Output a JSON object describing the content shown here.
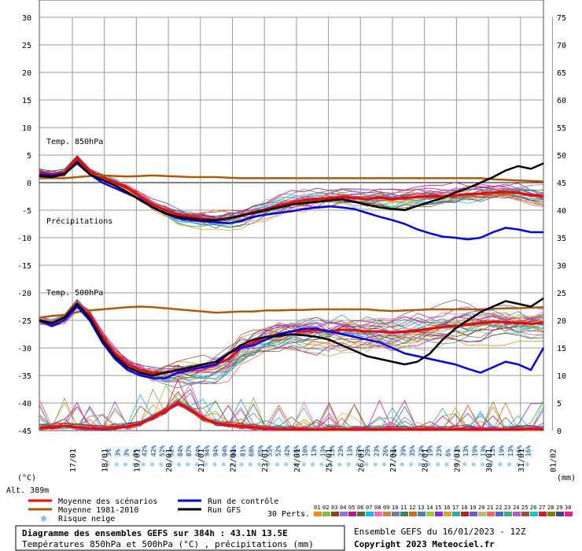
{
  "chart_data": {
    "type": "line",
    "title": "Diagramme des ensembles GEFS sur 384h : 43.1N 13.5E",
    "subtitle": "Températures 850hPa et 500hPa (°C) , précipitations (mm)",
    "left_axis_unit": "(°C)",
    "right_axis_unit": "(mm)",
    "altitude": "Alt. 389m",
    "ylim_temp": [
      -45,
      30
    ],
    "ylim_precip": [
      0,
      75
    ],
    "left_ticks": [
      "30",
      "25",
      "20",
      "15",
      "10",
      "5",
      "0",
      "-5",
      "-10",
      "-15",
      "-20",
      "-25",
      "-30",
      "-35",
      "-40",
      "-45"
    ],
    "right_ticks": [
      "75",
      "70",
      "65",
      "60",
      "55",
      "50",
      "45",
      "40",
      "35",
      "30",
      "25",
      "20",
      "15",
      "10",
      "5",
      "0"
    ],
    "dates": [
      "17/01",
      "18/01",
      "19/01",
      "20/01",
      "21/01",
      "22/01",
      "23/01",
      "24/01",
      "25/01",
      "26/01",
      "27/01",
      "28/01",
      "29/01",
      "30/01",
      "31/01",
      "01/02"
    ],
    "annotations": {
      "t850": "Temp. 850hPa",
      "precip": "Précipitations",
      "t500": "Temp. 500hPa"
    },
    "snow_risk_percent": [
      "3%",
      "3%",
      "3%",
      "3%",
      "42%",
      "42%",
      "52%",
      "52%",
      "84%",
      "87%",
      "94%",
      "94%",
      "94%",
      "94%",
      "90%",
      "81%",
      "68%",
      "65%",
      "55%",
      "52%",
      "42%",
      "16%",
      "10%",
      "13%",
      "13%",
      "13%",
      "23%",
      "13%",
      "23%",
      "29%",
      "23%",
      "26%",
      "26%",
      "39%",
      "35%",
      "23%",
      "19%",
      "23%",
      "6%",
      "13%",
      "13%",
      "19%",
      "13%",
      "13%",
      "19%",
      "13%",
      "16%",
      "16%"
    ],
    "series": [
      {
        "name": "Moyenne des scénarios",
        "color": "#ff0000",
        "t850": [
          2,
          1.5,
          1.8,
          4.5,
          2,
          1,
          0,
          -1,
          -2.5,
          -4,
          -5,
          -5.8,
          -6.2,
          -6.5,
          -6.8,
          -6.5,
          -6,
          -5.4,
          -4.8,
          -4.2,
          -3.6,
          -3.2,
          -3,
          -2.8,
          -2.6,
          -2.8,
          -3,
          -2.7,
          -3,
          -2.8,
          -2.6,
          -2.5,
          -2.5,
          -2.3,
          -2.1,
          -2,
          -1.8,
          -1.7,
          -1.9,
          -2.3,
          -2.5
        ],
        "t500": [
          -25,
          -25.5,
          -24.5,
          -22,
          -24,
          -28,
          -31,
          -33,
          -34,
          -34.5,
          -34.5,
          -34,
          -33.8,
          -33.5,
          -33,
          -32,
          -30,
          -29,
          -28,
          -27.5,
          -27,
          -27,
          -26.8,
          -27,
          -26.7,
          -26.8,
          -27,
          -27,
          -27.2,
          -27,
          -26.8,
          -26.5,
          -26.2,
          -26,
          -25.8,
          -25.5,
          -25.3,
          -25.3,
          -25.5,
          -25.6,
          -25.4
        ],
        "precip": [
          0.5,
          0.6,
          0.8,
          0.6,
          0.4,
          0.3,
          0.5,
          0.7,
          1.2,
          2.3,
          3.5,
          5.0,
          3.8,
          2.2,
          1.4,
          1.0,
          0.8,
          0.6,
          0.4,
          0.3,
          0.2,
          0.2,
          0.2,
          0.2,
          0.2,
          0.2,
          0.2,
          0.2,
          0.2,
          0.2,
          0.2,
          0.2,
          0.2,
          0.2,
          0.2,
          0.2,
          0.2,
          0.2,
          0.2,
          0.3,
          0.2
        ]
      },
      {
        "name": "Moyenne 1981-2010",
        "color": "#b35a00",
        "t850": [
          0.8,
          0.8,
          0.8,
          1.0,
          1.2,
          1.3,
          1.2,
          1.1,
          1.2,
          1.3,
          1.2,
          1.1,
          1.0,
          1.0,
          1.0,
          0.9,
          0.8,
          0.8,
          0.8,
          0.8,
          0.8,
          0.8,
          0.8,
          0.8,
          0.8,
          0.8,
          0.8,
          0.8,
          0.8,
          0.8,
          0.8,
          0.8,
          0.8,
          0.8,
          0.8,
          0.8,
          0.6,
          0.5,
          0.4,
          0.3,
          0.2
        ],
        "t500": [
          -24.5,
          -24.2,
          -24,
          -23.5,
          -23.2,
          -23,
          -22.8,
          -22.6,
          -22.5,
          -22.6,
          -22.8,
          -23,
          -23.2,
          -23.4,
          -23.6,
          -23.5,
          -23.4,
          -23.4,
          -23.2,
          -23.2,
          -23.1,
          -23.1,
          -23,
          -23,
          -23,
          -23,
          -23,
          -23.2,
          -23.3,
          -23.2,
          -23.1,
          -23,
          -23,
          -23,
          -23,
          -23,
          -22.9,
          -22.8,
          -22.8,
          -22.7,
          -22.6
        ]
      },
      {
        "name": "Run de contrôle",
        "color": "#0000ff",
        "t850": [
          1.5,
          1.3,
          1.6,
          3.5,
          1.5,
          0,
          -1,
          -2,
          -3,
          -4.5,
          -5.5,
          -6.5,
          -6.8,
          -7,
          -7.2,
          -7.4,
          -7,
          -6.2,
          -5.8,
          -5.5,
          -5.2,
          -4.8,
          -4.5,
          -4.3,
          -4.5,
          -4.8,
          -5.5,
          -6.2,
          -6.8,
          -7.5,
          -8.5,
          -9.2,
          -9.8,
          -10,
          -10.3,
          -10,
          -9,
          -8.2,
          -8.5,
          -9,
          -9
        ],
        "t500": [
          -25,
          -26,
          -25,
          -22.5,
          -25,
          -29,
          -32,
          -34,
          -35,
          -35.5,
          -35.5,
          -34.5,
          -34,
          -33.5,
          -33,
          -31,
          -30,
          -29.5,
          -28.5,
          -27.5,
          -27,
          -26.5,
          -26.5,
          -27,
          -27.5,
          -28,
          -28.5,
          -29,
          -30,
          -31,
          -31.5,
          -32,
          -32.5,
          -33,
          -33.8,
          -34.5,
          -33.5,
          -32.5,
          -33,
          -34,
          -30
        ]
      },
      {
        "name": "Run GFS",
        "color": "#000000",
        "t850": [
          1.2,
          1.0,
          1.5,
          3.8,
          1.5,
          0.5,
          -0.5,
          -1.8,
          -3.2,
          -4.5,
          -5.6,
          -6.2,
          -6.5,
          -6.8,
          -6.8,
          -6.5,
          -6,
          -5.5,
          -5,
          -4.5,
          -4,
          -3.7,
          -3.5,
          -3.2,
          -3,
          -3.5,
          -4,
          -4.5,
          -4.8,
          -5,
          -4.2,
          -3.5,
          -2.8,
          -1.8,
          -1,
          0,
          1,
          2.2,
          3.0,
          2.5,
          3.5
        ],
        "t500": [
          -25,
          -25.5,
          -24.5,
          -22,
          -24.5,
          -28.5,
          -31.5,
          -33.5,
          -34.5,
          -35,
          -34.5,
          -34,
          -33.5,
          -33,
          -32.5,
          -31,
          -29.5,
          -28.5,
          -28,
          -27.8,
          -27.5,
          -27.7,
          -28,
          -28.5,
          -29.5,
          -30.5,
          -31.5,
          -32,
          -32.5,
          -33,
          -32.5,
          -31,
          -28.5,
          -26.5,
          -25,
          -23.5,
          -22.5,
          -21.5,
          -22,
          -22.5,
          -21
        ]
      }
    ],
    "legend": [
      "Moyenne des scénarios",
      "Moyenne 1981-2010",
      "Run de contrôle",
      "Run GFS",
      "Risque neige"
    ],
    "perts_label": "30 Perts.",
    "pert_labels": [
      "01",
      "02",
      "03",
      "04",
      "05",
      "06",
      "07",
      "08",
      "09",
      "10",
      "11",
      "12",
      "13",
      "14",
      "15",
      "16",
      "17",
      "18",
      "19",
      "20",
      "21",
      "22",
      "23",
      "24",
      "25",
      "26",
      "27",
      "28",
      "29",
      "30"
    ],
    "pert_colors": [
      "#ff8c00",
      "#7cc04e",
      "#8b4513",
      "#9370db",
      "#c71585",
      "#556b2f",
      "#00bfff",
      "#ff69b4",
      "#cd853f",
      "#708090",
      "#2e8b57",
      "#d2691e",
      "#4682b4",
      "#9acd32",
      "#8a2be2",
      "#daa520",
      "#20b2aa",
      "#b22222",
      "#6a5acd",
      "#bdb76b",
      "#ff6347",
      "#4169e1",
      "#3cb371",
      "#ba55d3",
      "#a0522d",
      "#00ced1",
      "#dc143c",
      "#808000",
      "#483d8b",
      "#ff1493"
    ],
    "run_info": "Ensemble GEFS du 16/01/2023 - 12Z",
    "copyright": "Copyright 2023 Meteociel.fr"
  }
}
